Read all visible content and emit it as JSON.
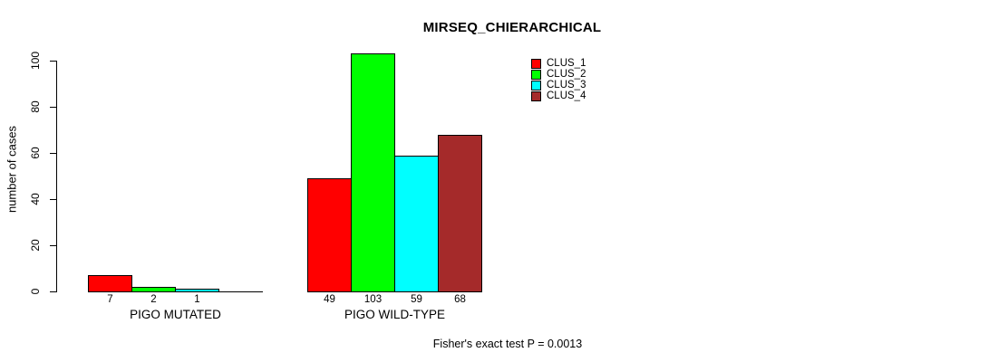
{
  "title": "MIRSEQ_CHIERARCHICAL",
  "footnote": "Fisher's exact test P = 0.0013",
  "chart_data": {
    "type": "bar",
    "title": "MIRSEQ_CHIERARCHICAL",
    "ylabel": "number of cases",
    "xlabel": "",
    "categories": [
      "PIGO MUTATED",
      "PIGO WILD-TYPE"
    ],
    "series": [
      {
        "name": "CLUS_1",
        "color": "#FF0000",
        "values": [
          7,
          49
        ]
      },
      {
        "name": "CLUS_2",
        "color": "#00FF00",
        "values": [
          2,
          103
        ]
      },
      {
        "name": "CLUS_3",
        "color": "#00FFFF",
        "values": [
          1,
          59
        ]
      },
      {
        "name": "CLUS_4",
        "color": "#A52A2A",
        "values": [
          0,
          68
        ]
      }
    ],
    "bar_labels": [
      [
        "7",
        "2",
        "1",
        ""
      ],
      [
        "49",
        "103",
        "59",
        "68"
      ]
    ],
    "yticks": [
      0,
      20,
      40,
      60,
      80,
      100
    ],
    "ylim": [
      0,
      103
    ],
    "grid": false,
    "legend_position": "top-right",
    "legend_entries": [
      "CLUS_1",
      "CLUS_2",
      "CLUS_3",
      "CLUS_4"
    ],
    "annotation": "Fisher's exact test P = 0.0013"
  }
}
